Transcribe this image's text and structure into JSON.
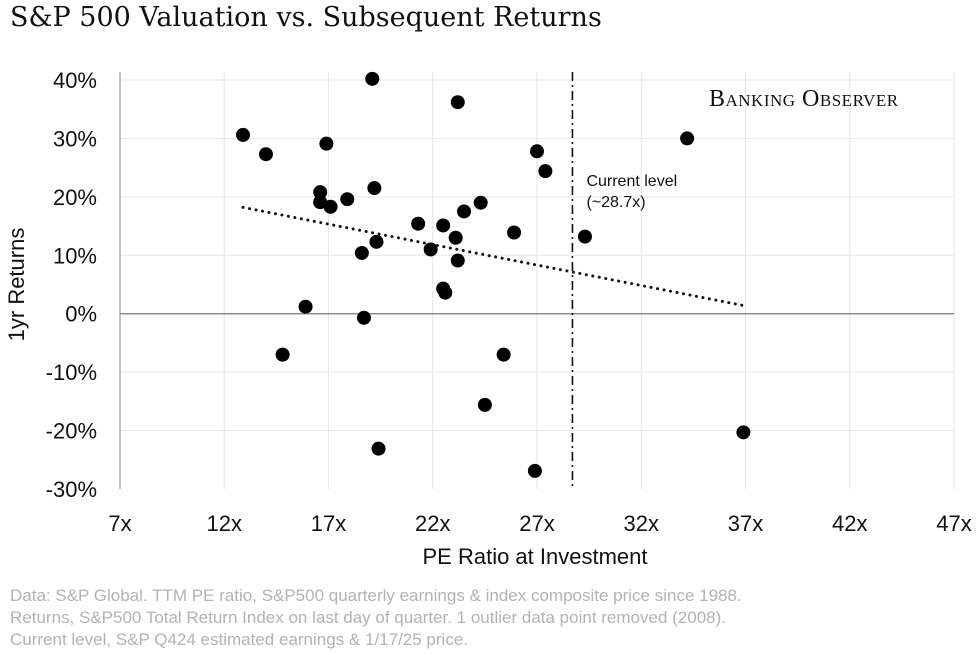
{
  "title": "S&P 500 Valuation vs. Subsequent Returns",
  "brand": "Banking Observer",
  "notes": [
    "Data: S&P Global. TTM PE ratio, S&P500 quarterly earnings & index composite price since 1988.",
    "Returns, S&P500 Total Return Index on last day of quarter. 1 outlier data point removed (2008).",
    "Current level, S&P Q424 estimated earnings & 1/17/25 price."
  ],
  "chart_data": {
    "type": "scatter",
    "xlabel": "PE Ratio at Investment",
    "ylabel": "1yr Returns",
    "xlim": [
      7,
      47
    ],
    "ylim": [
      -30,
      40
    ],
    "x_ticks": [
      7,
      12,
      17,
      22,
      27,
      32,
      37,
      42,
      47
    ],
    "x_tick_labels": [
      "7x",
      "12x",
      "17x",
      "22x",
      "27x",
      "32x",
      "37x",
      "42x",
      "47x"
    ],
    "y_ticks": [
      40,
      30,
      20,
      10,
      0,
      -10,
      -20,
      -30
    ],
    "y_tick_labels": [
      "40%",
      "30%",
      "20%",
      "10%",
      "0%",
      "-10%",
      "-20%",
      "-30%"
    ],
    "grid": true,
    "points": [
      {
        "x": 19.1,
        "y": 40.2
      },
      {
        "x": 23.2,
        "y": 36.2
      },
      {
        "x": 12.9,
        "y": 30.6
      },
      {
        "x": 34.2,
        "y": 30.0
      },
      {
        "x": 16.9,
        "y": 29.1
      },
      {
        "x": 27.0,
        "y": 27.8
      },
      {
        "x": 14.0,
        "y": 27.3
      },
      {
        "x": 27.4,
        "y": 24.4
      },
      {
        "x": 19.2,
        "y": 21.5
      },
      {
        "x": 16.6,
        "y": 20.8
      },
      {
        "x": 17.9,
        "y": 19.6
      },
      {
        "x": 16.6,
        "y": 19.1
      },
      {
        "x": 24.3,
        "y": 19.0
      },
      {
        "x": 17.1,
        "y": 18.3
      },
      {
        "x": 23.5,
        "y": 17.5
      },
      {
        "x": 21.3,
        "y": 15.4
      },
      {
        "x": 22.5,
        "y": 15.1
      },
      {
        "x": 25.9,
        "y": 13.9
      },
      {
        "x": 29.3,
        "y": 13.2
      },
      {
        "x": 23.1,
        "y": 13.0
      },
      {
        "x": 19.3,
        "y": 12.3
      },
      {
        "x": 21.9,
        "y": 11.0
      },
      {
        "x": 18.6,
        "y": 10.4
      },
      {
        "x": 23.2,
        "y": 9.1
      },
      {
        "x": 22.5,
        "y": 4.3
      },
      {
        "x": 22.6,
        "y": 3.6
      },
      {
        "x": 15.9,
        "y": 1.2
      },
      {
        "x": 18.7,
        "y": -0.7
      },
      {
        "x": 14.8,
        "y": -7.0
      },
      {
        "x": 25.4,
        "y": -7.0
      },
      {
        "x": 24.5,
        "y": -15.6
      },
      {
        "x": 36.9,
        "y": -20.3
      },
      {
        "x": 19.4,
        "y": -23.1
      },
      {
        "x": 26.9,
        "y": -26.9
      }
    ],
    "trendline": {
      "style": "dotted",
      "x": [
        12.9,
        36.9
      ],
      "y": [
        18.2,
        1.4
      ]
    },
    "reference_line": {
      "style": "dash-dot",
      "x": 28.7,
      "label": [
        "Current level",
        "(~28.7x)"
      ]
    }
  }
}
